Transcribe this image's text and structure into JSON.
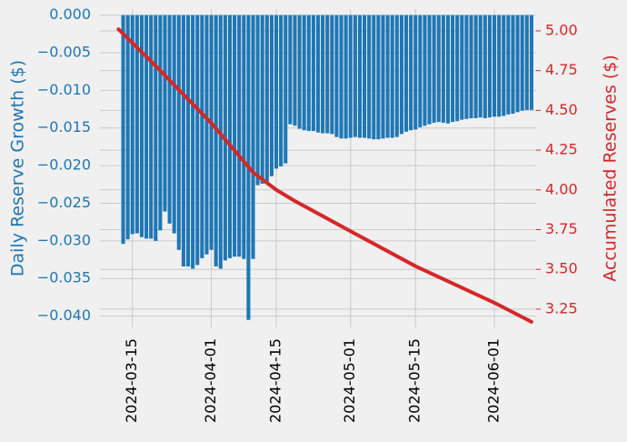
{
  "chart_data": {
    "type": "bar",
    "ylabel": "Daily Reserve Growth ($)",
    "y2label": "Accumulated Reserves ($)",
    "color": "#1f77b4",
    "grid": true,
    "x": [
      "2024-03-13",
      "2024-03-14",
      "2024-03-15",
      "2024-03-16",
      "2024-03-17",
      "2024-03-18",
      "2024-03-19",
      "2024-03-20",
      "2024-03-21",
      "2024-03-22",
      "2024-03-23",
      "2024-03-24",
      "2024-03-25",
      "2024-03-26",
      "2024-03-27",
      "2024-03-28",
      "2024-03-29",
      "2024-03-30",
      "2024-03-31",
      "2024-04-01",
      "2024-04-02",
      "2024-04-03",
      "2024-04-04",
      "2024-04-05",
      "2024-04-06",
      "2024-04-07",
      "2024-04-08",
      "2024-04-09",
      "2024-04-10",
      "2024-04-11",
      "2024-04-12",
      "2024-04-13",
      "2024-04-14",
      "2024-04-15",
      "2024-04-16",
      "2024-04-17",
      "2024-04-18",
      "2024-04-19",
      "2024-04-20",
      "2024-04-21",
      "2024-04-22",
      "2024-04-23",
      "2024-04-24",
      "2024-04-25",
      "2024-04-26",
      "2024-04-27",
      "2024-04-28",
      "2024-04-29",
      "2024-04-30",
      "2024-05-01",
      "2024-05-02",
      "2024-05-03",
      "2024-05-04",
      "2024-05-05",
      "2024-05-06",
      "2024-05-07",
      "2024-05-08",
      "2024-05-09",
      "2024-05-10",
      "2024-05-11",
      "2024-05-12",
      "2024-05-13",
      "2024-05-14",
      "2024-05-15",
      "2024-05-16",
      "2024-05-17",
      "2024-05-18",
      "2024-05-19",
      "2024-05-20",
      "2024-05-21",
      "2024-05-22",
      "2024-05-23",
      "2024-05-24",
      "2024-05-25",
      "2024-05-26",
      "2024-05-27",
      "2024-05-28",
      "2024-05-29",
      "2024-05-30",
      "2024-05-31",
      "2024-06-01",
      "2024-06-02",
      "2024-06-03",
      "2024-06-04",
      "2024-06-05",
      "2024-06-06",
      "2024-06-07",
      "2024-06-08",
      "2024-06-09"
    ],
    "values": [
      -0.0304,
      -0.0298,
      -0.0291,
      -0.029,
      -0.0295,
      -0.0297,
      -0.0297,
      -0.03,
      -0.0286,
      -0.0261,
      -0.0277,
      -0.029,
      -0.0312,
      -0.0334,
      -0.0334,
      -0.0337,
      -0.0332,
      -0.0323,
      -0.0318,
      -0.0312,
      -0.0334,
      -0.0337,
      -0.0326,
      -0.0323,
      -0.0321,
      -0.0321,
      -0.0324,
      -0.0405,
      -0.0324,
      -0.0226,
      -0.0224,
      -0.0221,
      -0.0214,
      -0.0204,
      -0.0201,
      -0.0197,
      -0.0145,
      -0.0147,
      -0.0151,
      -0.0153,
      -0.0154,
      -0.0154,
      -0.0156,
      -0.0157,
      -0.0157,
      -0.0158,
      -0.0162,
      -0.0164,
      -0.0164,
      -0.0163,
      -0.0162,
      -0.0163,
      -0.0163,
      -0.0164,
      -0.0165,
      -0.0165,
      -0.0164,
      -0.0163,
      -0.0163,
      -0.0162,
      -0.0158,
      -0.0155,
      -0.0153,
      -0.0152,
      -0.0149,
      -0.0147,
      -0.0145,
      -0.0143,
      -0.0142,
      -0.0143,
      -0.0144,
      -0.0142,
      -0.0141,
      -0.0139,
      -0.0138,
      -0.0137,
      -0.0137,
      -0.0136,
      -0.0137,
      -0.0136,
      -0.0135,
      -0.0135,
      -0.0134,
      -0.0132,
      -0.0131,
      -0.0129,
      -0.0127,
      -0.0126,
      -0.0126
    ],
    "line": {
      "axis": "y2",
      "color": "#d62728",
      "x": [
        "2024-03-12",
        "2024-03-20",
        "2024-04-01",
        "2024-04-10",
        "2024-04-15",
        "2024-04-19",
        "2024-05-01",
        "2024-05-15",
        "2024-06-01",
        "2024-06-09"
      ],
      "values": [
        5.01,
        4.78,
        4.42,
        4.11,
        4.0,
        3.93,
        3.74,
        3.52,
        3.29,
        3.17
      ]
    },
    "xlim": [
      "2024-03-08",
      "2024-06-10"
    ],
    "xticks": [
      "2024-03-15",
      "2024-04-01",
      "2024-04-15",
      "2024-05-01",
      "2024-05-15",
      "2024-06-01"
    ],
    "ylim": [
      -0.0415,
      0.0008
    ],
    "yticks": [
      {
        "value": 0,
        "label": "0.000"
      },
      {
        "value": -0.005,
        "label": "−0.005"
      },
      {
        "value": -0.01,
        "label": "−0.010"
      },
      {
        "value": -0.015,
        "label": "−0.015"
      },
      {
        "value": -0.02,
        "label": "−0.020"
      },
      {
        "value": -0.025,
        "label": "−0.025"
      },
      {
        "value": -0.03,
        "label": "−0.030"
      },
      {
        "value": -0.035,
        "label": "−0.035"
      },
      {
        "value": -0.04,
        "label": "−0.040"
      }
    ],
    "y2lim": [
      3.135,
      5.137
    ],
    "y2ticks": [
      {
        "value": 3.25,
        "label": "3.25"
      },
      {
        "value": 3.5,
        "label": "3.50"
      },
      {
        "value": 3.75,
        "label": "3.75"
      },
      {
        "value": 4,
        "label": "4.00"
      },
      {
        "value": 4.25,
        "label": "4.25"
      },
      {
        "value": 4.5,
        "label": "4.50"
      },
      {
        "value": 4.75,
        "label": "4.75"
      },
      {
        "value": 5,
        "label": "5.00"
      }
    ]
  }
}
